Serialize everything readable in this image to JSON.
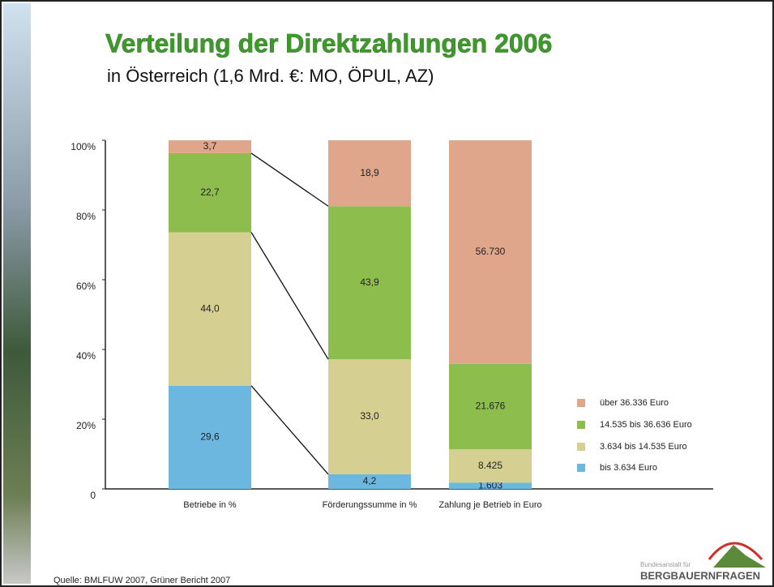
{
  "chart_data": {
    "type": "bar",
    "stacked": "percent",
    "title": "Verteilung der Direktzahlungen 2006",
    "subtitle": "in Österreich (1,6 Mrd. €: MO, ÖPUL, AZ)",
    "categories": [
      "Betriebe in %",
      "Förderungssumme in %",
      "Zahlung je Betrieb in Euro"
    ],
    "series": [
      {
        "name": "bis 3.634 Euro",
        "color": "#6cb7e0",
        "values": [
          29.6,
          4.2,
          1603
        ],
        "value_labels": [
          "29,6",
          "4,2",
          "1.603"
        ]
      },
      {
        "name": "3.634 bis 14.535 Euro",
        "color": "#d5cf92",
        "values": [
          44.0,
          33.0,
          8425
        ],
        "value_labels": [
          "44,0",
          "33,0",
          "8.425"
        ]
      },
      {
        "name": "14.535 bis 36.636 Euro",
        "color": "#8dbd4c",
        "values": [
          22.7,
          43.9,
          21676
        ],
        "value_labels": [
          "22,7",
          "43,9",
          "21.676"
        ]
      },
      {
        "name": "über 36.336 Euro",
        "color": "#e0a68b",
        "values": [
          3.7,
          18.9,
          56730
        ],
        "value_labels": [
          "3,7",
          "18,9",
          "56.730"
        ]
      }
    ],
    "ylim": [
      0,
      100
    ],
    "yticks": [
      0,
      {
        "value": 20,
        "label": "20%"
      },
      {
        "value": 40,
        "label": "40%"
      },
      {
        "value": 60,
        "label": "60%"
      },
      {
        "value": 80,
        "label": "80%"
      },
      {
        "value": 100,
        "label": "100%"
      }
    ],
    "grid": false,
    "legend": "right",
    "connectors": true
  },
  "source": "Quelle: BMLFUW 2007, Grüner Bericht 2007",
  "logo": {
    "line1": "Bundesanstalt für",
    "line2": "BERGBAUERNFRAGEN"
  }
}
